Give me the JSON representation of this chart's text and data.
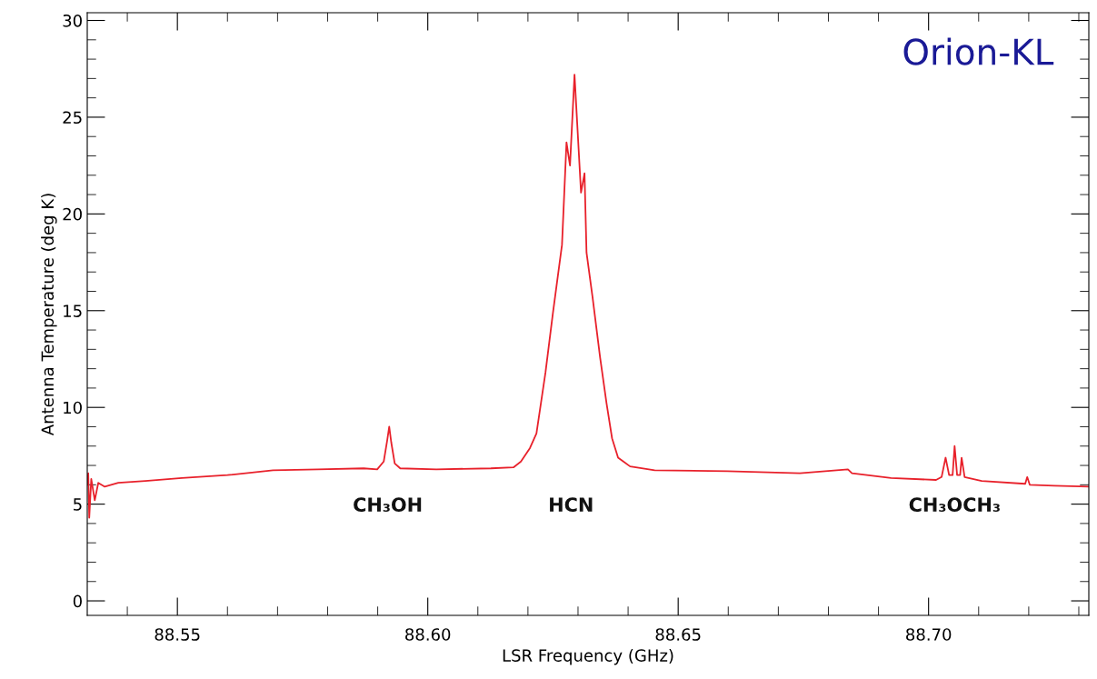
{
  "chart_data": {
    "type": "line",
    "xlabel": "LSR Frequency (GHz)",
    "ylabel": "Antenna Temperature (deg K)",
    "xlim": [
      88.532,
      88.732
    ],
    "xticks": [
      {
        "value": 88.55,
        "label": "88.55"
      },
      {
        "value": 88.6,
        "label": "88.60"
      },
      {
        "value": 88.65,
        "label": "88.65"
      },
      {
        "value": 88.7,
        "label": "88.70"
      }
    ],
    "ylim": [
      -0.75,
      30.4
    ],
    "yticks": [
      0,
      5,
      10,
      15,
      20,
      25,
      30
    ],
    "grid": false,
    "marker": "none",
    "line_style": "solid",
    "series": [
      {
        "color": "#e8212b",
        "x": [
          88.532,
          88.5322,
          88.5324,
          88.5328,
          88.5335,
          88.5342,
          88.5355,
          88.5382,
          88.5436,
          88.5509,
          88.56,
          88.5691,
          88.5781,
          88.5872,
          88.5899,
          88.5912,
          88.5919,
          88.5923,
          88.5927,
          88.5934,
          88.5945,
          88.6017,
          88.6126,
          88.6171,
          88.6186,
          88.6204,
          88.6217,
          88.6235,
          88.625,
          88.6268,
          88.6277,
          88.6284,
          88.6293,
          88.6306,
          88.6313,
          88.6317,
          88.6329,
          88.6344,
          88.6357,
          88.6368,
          88.638,
          88.6404,
          88.6453,
          88.6598,
          88.6743,
          88.6839,
          88.6847,
          88.6925,
          88.7015,
          88.7026,
          88.7034,
          88.7041,
          88.7048,
          88.7052,
          88.7057,
          88.7063,
          88.7066,
          88.7072,
          88.7106,
          88.7193,
          88.7197,
          88.7202,
          88.7251,
          88.732
        ],
        "values": [
          6.0,
          6.6,
          4.3,
          6.3,
          5.2,
          6.1,
          5.9,
          6.1,
          6.2,
          6.35,
          6.5,
          6.75,
          6.8,
          6.85,
          6.8,
          7.2,
          8.3,
          9.0,
          8.2,
          7.1,
          6.85,
          6.8,
          6.85,
          6.9,
          7.2,
          7.9,
          8.65,
          11.8,
          14.9,
          18.4,
          23.7,
          22.5,
          27.2,
          21.1,
          22.1,
          18.0,
          15.7,
          12.6,
          10.2,
          8.4,
          7.4,
          6.95,
          6.75,
          6.7,
          6.6,
          6.8,
          6.6,
          6.35,
          6.25,
          6.4,
          7.4,
          6.5,
          6.5,
          8.0,
          6.5,
          6.5,
          7.4,
          6.4,
          6.2,
          6.05,
          6.4,
          6.0,
          5.95,
          5.9
        ]
      }
    ],
    "annotations": [
      "CH₃OH",
      "HCN",
      "CH₃OCH₃",
      "Orion-KL"
    ]
  }
}
